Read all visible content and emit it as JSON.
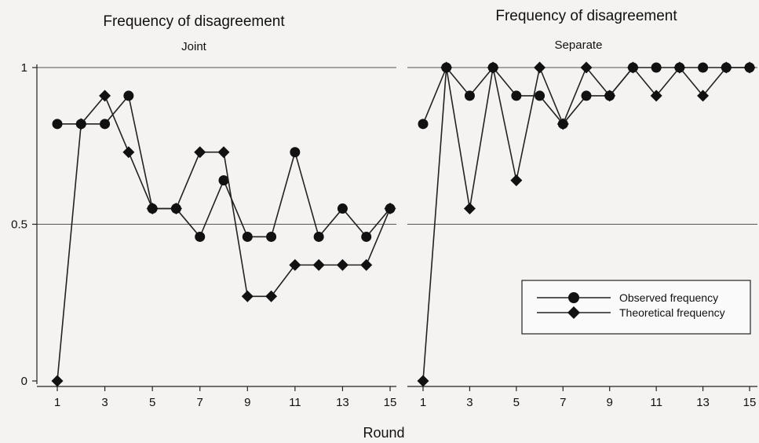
{
  "chart_data": [
    {
      "type": "line",
      "title": "Frequency of disagreement",
      "subtitle": "Joint",
      "x": [
        1,
        2,
        3,
        4,
        5,
        6,
        7,
        8,
        9,
        10,
        11,
        12,
        13,
        14,
        15
      ],
      "xticks": [
        1,
        3,
        5,
        7,
        9,
        11,
        13,
        15
      ],
      "yticks": [
        0,
        0.5,
        1
      ],
      "ytick_labels": [
        "0",
        "0.5",
        "1"
      ],
      "ylim": [
        0,
        1
      ],
      "xlim": [
        1,
        15
      ],
      "grid": "horizontal at 0.5 and 1",
      "series": [
        {
          "name": "Observed frequency",
          "marker": "circle",
          "values": [
            0.82,
            0.82,
            0.82,
            0.91,
            0.55,
            0.55,
            0.46,
            0.64,
            0.46,
            0.46,
            0.73,
            0.46,
            0.55,
            0.46,
            0.55
          ]
        },
        {
          "name": "Theoretical frequency",
          "marker": "diamond",
          "values": [
            0,
            0.82,
            0.91,
            0.73,
            0.55,
            0.55,
            0.73,
            0.73,
            0.27,
            0.27,
            0.37,
            0.37,
            0.37,
            0.37,
            0.55
          ]
        }
      ]
    },
    {
      "type": "line",
      "title": "Frequency of disagreement",
      "subtitle": "Separate",
      "x": [
        1,
        2,
        3,
        4,
        5,
        6,
        7,
        8,
        9,
        10,
        11,
        12,
        13,
        14,
        15
      ],
      "xticks": [
        1,
        3,
        5,
        7,
        9,
        11,
        13,
        15
      ],
      "yticks": [
        0,
        0.5,
        1
      ],
      "ylim": [
        0,
        1
      ],
      "xlim": [
        1,
        15
      ],
      "grid": "horizontal at 0.5 and 1",
      "series": [
        {
          "name": "Observed frequency",
          "marker": "circle",
          "values": [
            0.82,
            1,
            0.91,
            1,
            0.91,
            0.91,
            0.82,
            0.91,
            0.91,
            1,
            1,
            1,
            1,
            1,
            1
          ]
        },
        {
          "name": "Theoretical frequency",
          "marker": "diamond",
          "values": [
            0,
            1,
            0.55,
            1,
            0.64,
            1,
            0.82,
            1,
            0.91,
            1,
            0.91,
            1,
            0.91,
            1,
            1
          ]
        }
      ]
    }
  ],
  "xlabel": "Round",
  "legend": {
    "placement": "inside right panel, lower-right",
    "entries": [
      "Observed frequency",
      "Theoretical frequency"
    ]
  }
}
